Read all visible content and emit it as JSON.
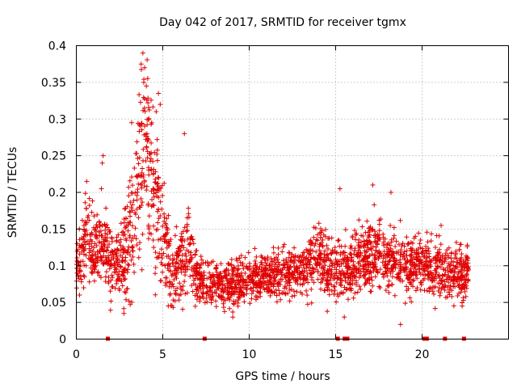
{
  "chart_data": {
    "type": "scatter",
    "title": "Day 042 of 2017, SRMTID for receiver tgmx",
    "xlabel": "GPS time / hours",
    "ylabel": "SRMTID / TECUs",
    "xlim": [
      0,
      25
    ],
    "ylim": [
      0,
      0.4
    ],
    "xticks": [
      0,
      5,
      10,
      15,
      20
    ],
    "yticks": [
      0,
      0.05,
      0.1,
      0.15,
      0.2,
      0.25,
      0.3,
      0.35,
      0.4
    ],
    "xtick_labels": [
      "0",
      "5",
      "10",
      "15",
      "20"
    ],
    "ytick_labels": [
      "0",
      "0.05",
      "0.1",
      "0.15",
      "0.2",
      "0.25",
      "0.3",
      "0.35",
      "0.4"
    ],
    "grid": true,
    "marker": "plus",
    "color": "#e00000",
    "series_trend": {
      "name": "SRMTID",
      "x_hours": [
        0.0,
        0.5,
        1.0,
        1.5,
        2.0,
        2.5,
        3.0,
        3.5,
        4.0,
        4.5,
        5.0,
        5.5,
        6.0,
        6.5,
        7.0,
        7.5,
        8.0,
        9.0,
        10.0,
        11.0,
        12.0,
        13.0,
        13.5,
        14.0,
        15.0,
        16.0,
        17.0,
        18.0,
        19.0,
        20.0,
        21.0,
        22.0,
        22.7
      ],
      "typical_y": [
        0.09,
        0.14,
        0.12,
        0.13,
        0.1,
        0.1,
        0.13,
        0.2,
        0.26,
        0.2,
        0.14,
        0.09,
        0.1,
        0.13,
        0.08,
        0.07,
        0.075,
        0.075,
        0.08,
        0.085,
        0.09,
        0.09,
        0.1,
        0.11,
        0.09,
        0.1,
        0.12,
        0.11,
        0.1,
        0.1,
        0.09,
        0.09,
        0.09
      ],
      "spread_y": [
        0.03,
        0.05,
        0.04,
        0.04,
        0.04,
        0.035,
        0.06,
        0.08,
        0.09,
        0.08,
        0.06,
        0.035,
        0.04,
        0.05,
        0.025,
        0.025,
        0.025,
        0.025,
        0.025,
        0.025,
        0.025,
        0.03,
        0.035,
        0.04,
        0.035,
        0.035,
        0.04,
        0.035,
        0.035,
        0.03,
        0.03,
        0.03,
        0.03
      ],
      "approx_point_count": 2600
    },
    "outliers": [
      {
        "x": 3.85,
        "y": 0.39
      },
      {
        "x": 3.75,
        "y": 0.375
      },
      {
        "x": 3.95,
        "y": 0.37
      },
      {
        "x": 3.9,
        "y": 0.35
      },
      {
        "x": 4.05,
        "y": 0.345
      },
      {
        "x": 4.75,
        "y": 0.335
      },
      {
        "x": 4.85,
        "y": 0.32
      },
      {
        "x": 3.2,
        "y": 0.295
      },
      {
        "x": 6.25,
        "y": 0.28
      },
      {
        "x": 1.55,
        "y": 0.25
      },
      {
        "x": 1.5,
        "y": 0.24
      },
      {
        "x": 0.6,
        "y": 0.215
      },
      {
        "x": 1.45,
        "y": 0.205
      },
      {
        "x": 17.15,
        "y": 0.21
      },
      {
        "x": 15.25,
        "y": 0.205
      },
      {
        "x": 18.2,
        "y": 0.2
      },
      {
        "x": 21.1,
        "y": 0.155
      },
      {
        "x": 18.75,
        "y": 0.02
      },
      {
        "x": 15.5,
        "y": 0.03
      },
      {
        "x": 2.75,
        "y": 0.035
      },
      {
        "x": 9.05,
        "y": 0.03
      }
    ],
    "zero_markers_x": [
      1.8,
      7.4,
      15.1,
      15.5,
      15.65,
      20.1,
      20.25,
      21.3,
      22.4
    ]
  }
}
